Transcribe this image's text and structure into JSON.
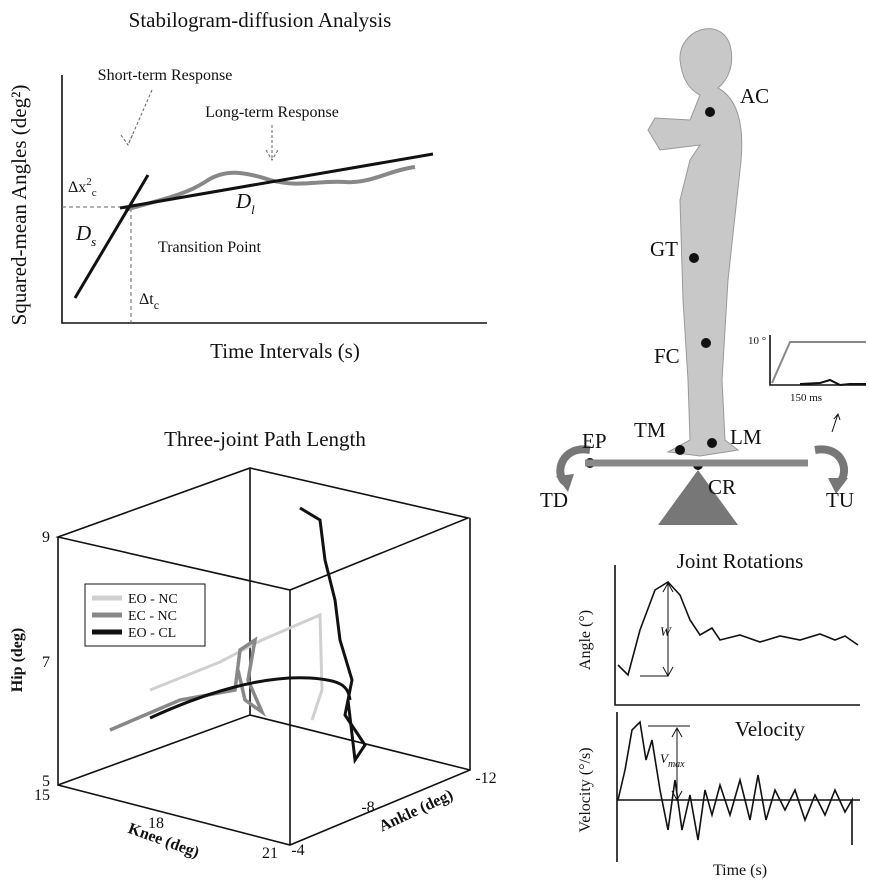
{
  "sda": {
    "title": "Stabilogram-diffusion Analysis",
    "y_label": "Squared-mean Angles (deg²)",
    "x_label": "Time Intervals (s)",
    "short_term": "Short-term Response",
    "long_term": "Long-term Response",
    "transition": "Transition Point",
    "dx": {
      "base": "Δx",
      "sup": "2",
      "sub": "c"
    },
    "ds": {
      "base": "D",
      "sub": "s"
    },
    "dl": {
      "base": "D",
      "sub": "l"
    },
    "dt": {
      "base": "Δt",
      "sub": "c"
    }
  },
  "path3d": {
    "title": "Three-joint Path Length",
    "hip_label": "Hip (deg)",
    "knee_label": "Knee (deg)",
    "ankle_label": "Ankle (deg)",
    "hip_ticks": [
      "9",
      "7",
      "5"
    ],
    "knee_ticks": [
      "15",
      "18",
      "21"
    ],
    "ankle_ticks": [
      "-4",
      "-8",
      "-12"
    ],
    "legend": [
      "EO - NC",
      "EC - NC",
      "EO - CL"
    ]
  },
  "figure": {
    "points": {
      "ac": "AC",
      "gt": "GT",
      "fc": "FC",
      "tm": "TM",
      "lm": "LM",
      "ep": "EP",
      "cr": "CR",
      "td": "TD",
      "tu": "TU"
    },
    "inset_angle": "10 °",
    "inset_time": "150 ms"
  },
  "rotations": {
    "title": "Joint Rotations",
    "angle_label": "Angle (°)",
    "w": "W",
    "velocity": "Velocity",
    "velocity_label": "Velocity (°/s)",
    "vmax": {
      "base": "V",
      "sub": "max"
    },
    "time_label": "Time (s)"
  }
}
